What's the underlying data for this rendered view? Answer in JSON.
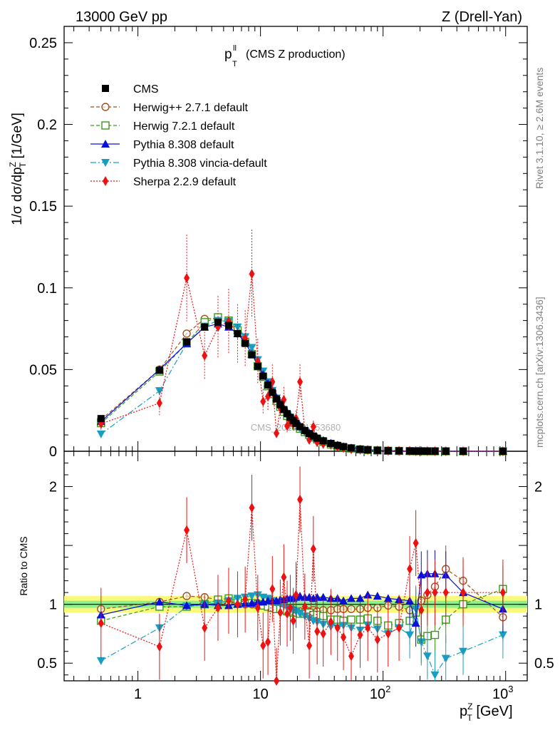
{
  "header": {
    "left": "13000 GeV pp",
    "right": "Z (Drell-Yan)"
  },
  "plot_title": {
    "symbol": "p",
    "sup": "ll",
    "sub": "T",
    "rest": "(CMS Z production)"
  },
  "side_labels": {
    "rivet": "Rivet 3.1.10, ≥ 2.6M events",
    "mcplots": "mcplots.cern.ch [arXiv:1306.3436]"
  },
  "watermark": "CMS_2019_I1753680",
  "colors": {
    "CMS": "#000000",
    "Herwig++ 2.7.1 default": "#a0521e",
    "Herwig 7.2.1 default": "#3a9a17",
    "Pythia 8.308 default": "#0b10d8",
    "Pythia 8.308 vincia-default": "#1a9ec0",
    "Sherpa 2.2.9 default": "#ee1111",
    "band_yellow": "#fafa7a",
    "band_green": "#8cf08c"
  },
  "chart_data": [
    {
      "type": "line",
      "panel": "main",
      "ylabel": "1/σ dσ/dp_T^Z [1/GeV]",
      "xscale": "log",
      "xlim": [
        0.25,
        1500
      ],
      "ylim": [
        0,
        0.26
      ],
      "yticks": [
        "0",
        "0.05",
        "0.1",
        "0.15",
        "0.2",
        "0.25"
      ],
      "legend_position": "top-left",
      "legend": [
        "CMS",
        "Herwig++ 2.7.1 default",
        "Herwig 7.2.1 default",
        "Pythia 8.308 default",
        "Pythia 8.308 vincia-default",
        "Sherpa 2.2.9 default"
      ],
      "x": [
        0.5,
        1.5,
        2.5,
        3.5,
        4.5,
        5.5,
        6.5,
        7.5,
        8.5,
        9.5,
        10.5,
        11.5,
        12.5,
        13.5,
        14.5,
        15.5,
        16.5,
        17.5,
        18.5,
        19.5,
        21,
        23,
        25,
        27,
        29,
        32.5,
        37.5,
        42.5,
        47.5,
        55,
        65,
        75,
        90,
        110,
        135,
        165,
        185,
        205,
        230,
        265,
        325,
        450,
        950
      ],
      "series": [
        {
          "name": "CMS",
          "values": [
            0.02,
            0.0495,
            0.067,
            0.076,
            0.079,
            0.077,
            0.072,
            0.066,
            0.059,
            0.052,
            0.046,
            0.0405,
            0.036,
            0.032,
            0.0285,
            0.0255,
            0.023,
            0.0208,
            0.0188,
            0.0171,
            0.015,
            0.0127,
            0.0108,
            0.0093,
            0.008,
            0.0064,
            0.0048,
            0.0036,
            0.0028,
            0.002,
            0.0013,
            0.0009,
            0.0006,
            0.0004,
            0.00025,
            0.00015,
            0.0001,
            8e-05,
            6e-05,
            4e-05,
            2e-05,
            1e-05,
            1e-06
          ]
        },
        {
          "name": "Herwig++ 2.7.1 default",
          "values": [
            0.0193,
            0.05,
            0.072,
            0.081,
            0.0815,
            0.079,
            0.0735,
            0.067,
            0.06,
            0.0525,
            0.046,
            0.04,
            0.035,
            0.031,
            0.0272,
            0.0243,
            0.0218,
            0.0196,
            0.0178,
            0.0161,
            0.014,
            0.012,
            0.0102,
            0.0088,
            0.0076,
            0.0061,
            0.0046,
            0.0035,
            0.0027,
            0.0019,
            0.0012,
            0.0009,
            0.0006,
            0.0004,
            0.0002,
            0.00015,
            0.0001,
            8e-05,
            6e-05,
            4e-05,
            2e-05,
            1e-05,
            1e-06
          ]
        },
        {
          "name": "Herwig 7.2.1 default",
          "values": [
            0.0172,
            0.0488,
            0.066,
            0.079,
            0.082,
            0.08,
            0.074,
            0.067,
            0.0595,
            0.052,
            0.0455,
            0.0398,
            0.035,
            0.0308,
            0.0272,
            0.0242,
            0.0216,
            0.0194,
            0.0175,
            0.0158,
            0.0138,
            0.0118,
            0.01,
            0.0085,
            0.0073,
            0.0058,
            0.0042,
            0.0031,
            0.0024,
            0.0017,
            0.0011,
            0.0008,
            0.0005,
            0.0003,
            0.0002,
            0.00013,
            7e-05,
            6e-05,
            4e-05,
            3e-05,
            2e-05,
            1e-05,
            1e-06
          ]
        },
        {
          "name": "Pythia 8.308 default",
          "values": [
            0.0182,
            0.05,
            0.066,
            0.076,
            0.078,
            0.076,
            0.072,
            0.0665,
            0.0595,
            0.053,
            0.047,
            0.0415,
            0.037,
            0.033,
            0.0296,
            0.0265,
            0.024,
            0.0217,
            0.0196,
            0.0178,
            0.0157,
            0.0133,
            0.0113,
            0.0097,
            0.0084,
            0.0067,
            0.005,
            0.0038,
            0.0029,
            0.0021,
            0.0014,
            0.001,
            0.0006,
            0.0004,
            0.00025,
            0.00015,
            8e-05,
            0.0001,
            7e-05,
            5e-05,
            2e-05,
            1e-05,
            1e-06
          ]
        },
        {
          "name": "Pythia 8.308 vincia-default",
          "values": [
            0.0105,
            0.037,
            0.066,
            0.0765,
            0.08,
            0.0795,
            0.076,
            0.07,
            0.0635,
            0.056,
            0.049,
            0.0425,
            0.0372,
            0.0325,
            0.0285,
            0.0252,
            0.0224,
            0.02,
            0.0179,
            0.016,
            0.0138,
            0.0114,
            0.0095,
            0.008,
            0.0068,
            0.0053,
            0.0039,
            0.0029,
            0.0023,
            0.0016,
            0.001,
            0.0007,
            0.0005,
            0.0003,
            0.0002,
            0.00012,
            7e-05,
            6e-05,
            4e-05,
            3e-05,
            2e-05,
            1e-05,
            1e-06
          ]
        },
        {
          "name": "Sherpa 2.2.9 default",
          "values": [
            0.0168,
            0.0295,
            0.106,
            0.0585,
            0.076,
            0.0795,
            0.072,
            0.069,
            0.1085,
            0.055,
            0.0305,
            0.0335,
            0.0425,
            0.011,
            0.0265,
            0.0315,
            0.0155,
            0.0185,
            0.0165,
            0.02,
            0.0425,
            0.0125,
            0.007,
            0.015,
            0.0055,
            0.0045,
            0.004,
            0.0028,
            0.002,
            0.0013,
            0.001,
            0.0008,
            0.0005,
            0.0003,
            0.0002,
            0.0002,
            0.0001,
            0.0001,
            8e-05,
            5e-05,
            3e-05,
            1e-05,
            1e-06
          ]
        }
      ]
    },
    {
      "type": "line",
      "panel": "ratio",
      "ylabel": "Ratio to CMS",
      "xlabel": "p_T^Z [GeV]",
      "xscale": "log",
      "xlim": [
        0.25,
        1500
      ],
      "ylim": [
        0.35,
        2.3
      ],
      "yticks": [
        "0.5",
        "1",
        "2"
      ],
      "xticks": [
        "1",
        "10",
        "10^2",
        "10^3"
      ],
      "band": {
        "yellow": [
          0.93,
          1.07
        ],
        "green": [
          0.97,
          1.03
        ]
      },
      "x": [
        0.5,
        1.5,
        2.5,
        3.5,
        4.5,
        5.5,
        6.5,
        7.5,
        8.5,
        9.5,
        10.5,
        11.5,
        12.5,
        13.5,
        14.5,
        15.5,
        16.5,
        17.5,
        18.5,
        19.5,
        21,
        23,
        25,
        27,
        29,
        32.5,
        37.5,
        42.5,
        47.5,
        55,
        65,
        75,
        90,
        110,
        135,
        165,
        185,
        205,
        230,
        265,
        325,
        450,
        950
      ],
      "series": [
        {
          "name": "Herwig++ 2.7.1 default",
          "values": [
            0.96,
            1.02,
            1.07,
            1.06,
            1.04,
            1.02,
            1.01,
            1.0,
            1.0,
            1.01,
            1.0,
            0.99,
            0.98,
            0.97,
            0.96,
            0.95,
            0.95,
            0.95,
            0.95,
            0.94,
            0.94,
            0.94,
            0.94,
            0.95,
            0.94,
            0.95,
            0.95,
            0.96,
            0.96,
            0.96,
            0.96,
            0.97,
            0.97,
            0.99,
            0.98,
            0.95,
            0.94,
            1.03,
            1.08,
            1.15,
            1.3,
            1.2,
            0.89
          ]
        },
        {
          "name": "Herwig 7.2.1 default",
          "values": [
            0.86,
            0.98,
            0.98,
            1.0,
            1.04,
            1.05,
            1.03,
            1.01,
            1.01,
            1.0,
            0.99,
            0.98,
            0.97,
            0.96,
            0.96,
            0.95,
            0.94,
            0.94,
            0.93,
            0.93,
            0.92,
            0.92,
            0.93,
            0.91,
            0.91,
            0.9,
            0.87,
            0.87,
            0.86,
            0.87,
            0.87,
            0.88,
            0.86,
            0.82,
            0.84,
            0.86,
            0.93,
            0.7,
            0.73,
            0.74,
            0.87,
            1.0,
            1.13
          ]
        },
        {
          "name": "Pythia 8.308 default",
          "values": [
            0.91,
            1.02,
            0.99,
            1.0,
            0.99,
            0.99,
            1.0,
            1.01,
            1.01,
            1.02,
            1.02,
            1.03,
            1.03,
            1.03,
            1.04,
            1.04,
            1.05,
            1.05,
            1.05,
            1.06,
            1.07,
            1.06,
            1.06,
            1.05,
            1.06,
            1.06,
            1.05,
            1.05,
            1.03,
            1.05,
            1.05,
            1.08,
            1.07,
            1.05,
            1.04,
            1.03,
            0.84,
            1.25,
            1.26,
            1.26,
            1.25,
            1.1,
            0.96
          ]
        },
        {
          "name": "Pythia 8.308 vincia-default",
          "values": [
            0.52,
            0.8,
            0.98,
            1.0,
            1.01,
            1.03,
            1.05,
            1.06,
            1.07,
            1.08,
            1.06,
            1.05,
            1.03,
            1.01,
            1.0,
            0.99,
            0.97,
            0.96,
            0.95,
            0.94,
            0.92,
            0.9,
            0.88,
            0.86,
            0.85,
            0.83,
            0.81,
            0.8,
            0.82,
            0.8,
            0.78,
            0.82,
            0.79,
            0.75,
            0.8,
            0.74,
            0.96,
            0.68,
            0.56,
            0.4,
            0.54,
            0.6,
            0.74
          ]
        },
        {
          "name": "Sherpa 2.2.9 default",
          "values": [
            0.84,
            0.64,
            1.63,
            0.8,
            0.97,
            1.03,
            1.0,
            1.04,
            1.82,
            0.97,
            0.65,
            0.68,
            1.13,
            0.35,
            0.93,
            1.23,
            0.92,
            0.97,
            0.86,
            1.08,
            1.89,
            0.98,
            0.65,
            1.47,
            0.77,
            0.75,
            0.85,
            0.8,
            0.72,
            0.56,
            0.74,
            0.8,
            0.7,
            0.75,
            0.8,
            1.3,
            1.52,
            0.95,
            1.1,
            1.1,
            1.1,
            1.1,
            1.1
          ]
        }
      ]
    }
  ]
}
